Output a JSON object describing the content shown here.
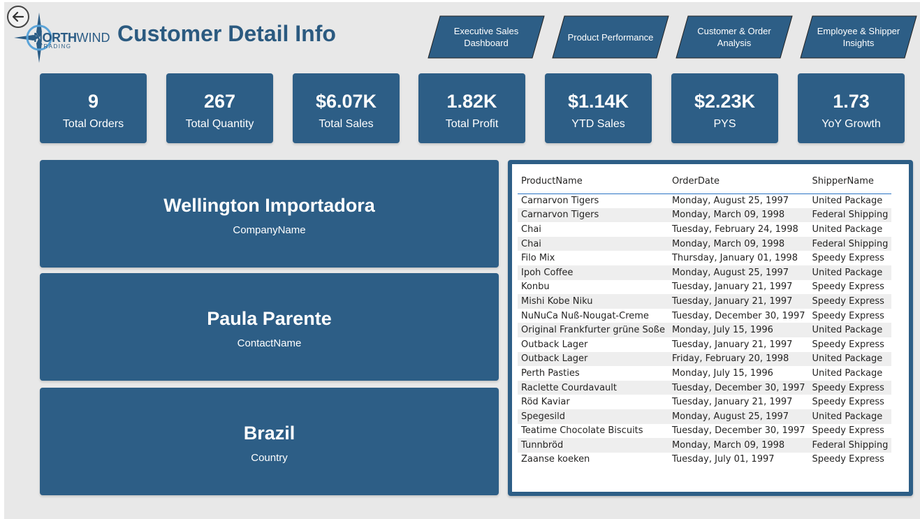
{
  "header": {
    "title": "Customer Detail Info",
    "logo": {
      "name_bold": "NORTH",
      "name_light": "WIND",
      "tagline": "TRADING"
    },
    "back_icon": "back-arrow-icon"
  },
  "nav": [
    {
      "label": "Executive Sales Dashboard"
    },
    {
      "label": "Product Performance"
    },
    {
      "label": "Customer & Order Analysis"
    },
    {
      "label": "Employee & Shipper Insights"
    }
  ],
  "kpis": [
    {
      "value": "9",
      "label": "Total Orders"
    },
    {
      "value": "267",
      "label": "Total Quantity"
    },
    {
      "value": "$6.07K",
      "label": "Total Sales"
    },
    {
      "value": "1.82K",
      "label": "Total Profit"
    },
    {
      "value": "$1.14K",
      "label": "YTD Sales"
    },
    {
      "value": "$2.23K",
      "label": "PYS"
    },
    {
      "value": "1.73",
      "label": "YoY Growth"
    }
  ],
  "cards": {
    "company": {
      "value": "Wellington Importadora",
      "label": "CompanyName"
    },
    "contact": {
      "value": "Paula Parente",
      "label": "ContactName"
    },
    "country": {
      "value": "Brazil",
      "label": "Country"
    }
  },
  "table": {
    "headers": [
      "ProductName",
      "OrderDate",
      "ShipperName"
    ],
    "rows": [
      [
        "Carnarvon Tigers",
        "Monday, August 25, 1997",
        "United Package"
      ],
      [
        "Carnarvon Tigers",
        "Monday, March 09, 1998",
        "Federal Shipping"
      ],
      [
        "Chai",
        "Tuesday, February 24, 1998",
        "United Package"
      ],
      [
        "Chai",
        "Monday, March 09, 1998",
        "Federal Shipping"
      ],
      [
        "Filo Mix",
        "Thursday, January 01, 1998",
        "Speedy Express"
      ],
      [
        "Ipoh Coffee",
        "Monday, August 25, 1997",
        "United Package"
      ],
      [
        "Konbu",
        "Tuesday, January 21, 1997",
        "Speedy Express"
      ],
      [
        "Mishi Kobe Niku",
        "Tuesday, January 21, 1997",
        "Speedy Express"
      ],
      [
        "NuNuCa Nuß-Nougat-Creme",
        "Tuesday, December 30, 1997",
        "Speedy Express"
      ],
      [
        "Original Frankfurter grüne Soße",
        "Monday, July 15, 1996",
        "United Package"
      ],
      [
        "Outback Lager",
        "Tuesday, January 21, 1997",
        "Speedy Express"
      ],
      [
        "Outback Lager",
        "Friday, February 20, 1998",
        "United Package"
      ],
      [
        "Perth Pasties",
        "Monday, July 15, 1996",
        "United Package"
      ],
      [
        "Raclette Courdavault",
        "Tuesday, December 30, 1997",
        "Speedy Express"
      ],
      [
        "Röd Kaviar",
        "Tuesday, January 21, 1997",
        "Speedy Express"
      ],
      [
        "Spegesild",
        "Monday, August 25, 1997",
        "United Package"
      ],
      [
        "Teatime Chocolate Biscuits",
        "Tuesday, December 30, 1997",
        "Speedy Express"
      ],
      [
        "Tunnbröd",
        "Monday, March 09, 1998",
        "Federal Shipping"
      ],
      [
        "Zaanse koeken",
        "Tuesday, July 01, 1997",
        "Speedy Express"
      ]
    ]
  },
  "colors": {
    "primary": "#2d5e86",
    "title": "#2b5a80",
    "background": "#e8e8e8",
    "accent_line": "#2b74c4"
  }
}
